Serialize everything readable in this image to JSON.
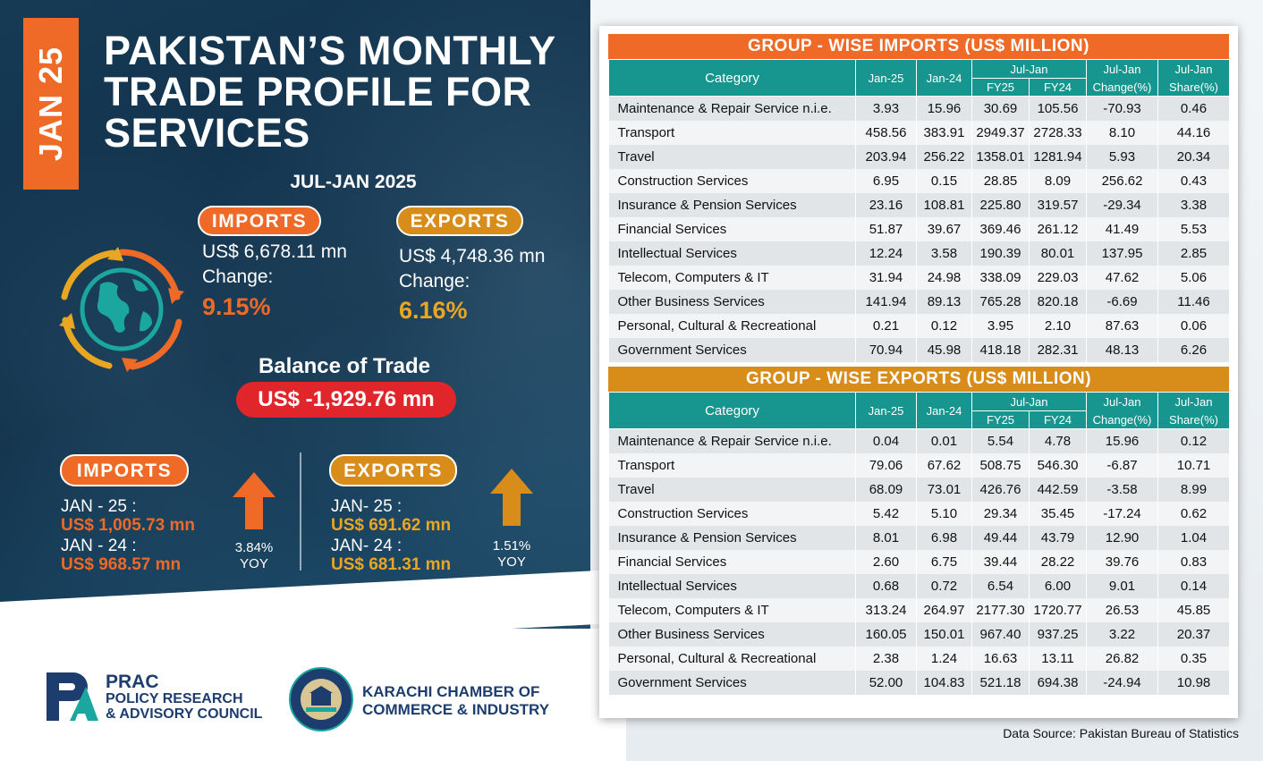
{
  "header": {
    "side_tag": "JAN 25",
    "title_line1": "PAKISTAN’S MONTHLY",
    "title_line2": "TRADE PROFILE FOR",
    "title_line3": "SERVICES",
    "period": "JUL-JAN 2025"
  },
  "summary": {
    "imports_label": "IMPORTS",
    "imports_value": "US$ 6,678.11 mn",
    "imports_change_label": "Change:",
    "imports_change": "9.15%",
    "exports_label": "EXPORTS",
    "exports_value": "US$  4,748.36 mn",
    "exports_change_label": "Change:",
    "exports_change": "6.16%",
    "balance_label": "Balance of Trade",
    "balance_value": "US$ -1,929.76 mn"
  },
  "monthly": {
    "imports_label": "IMPORTS",
    "imports_jan25_label": "JAN - 25 :",
    "imports_jan25_value": "US$ 1,005.73 mn",
    "imports_jan24_label": "JAN - 24 :",
    "imports_jan24_value": "US$ 968.57 mn",
    "imports_yoy_pct": "3.84%",
    "imports_yoy_label": "YOY",
    "exports_label": "EXPORTS",
    "exports_jan25_label": "JAN- 25 :",
    "exports_jan25_value": "US$ 691.62 mn",
    "exports_jan24_label": "JAN- 24 :",
    "exports_jan24_value": "US$ 681.31 mn",
    "exports_yoy_pct": "1.51%",
    "exports_yoy_label": "YOY"
  },
  "logos": {
    "prac_short": "PRAC",
    "prac_line1": "POLICY RESEARCH",
    "prac_line2": "& ADVISORY COUNCIL",
    "kcci_line1": "KARACHI CHAMBER OF",
    "kcci_line2": "COMMERCE & INDUSTRY",
    "kcci_seal_text": "KARACHI CHAMBER OF COMMERCE & INDUSTRY"
  },
  "colors": {
    "orange": "#ee6a26",
    "gold": "#d88d1b",
    "teal": "#17958f",
    "red": "#e0262b",
    "navy": "#163a55"
  },
  "chart_data": [
    {
      "type": "table",
      "title": "GROUP - WISE IMPORTS (US$ MILLION)",
      "columns": [
        "Category",
        "Jan-25",
        "Jan-24",
        "Jul-Jan FY25",
        "Jul-Jan FY24",
        "Jul-Jan Change(%)",
        "Jul-Jan Share(%)"
      ],
      "header": {
        "category": "Category",
        "jan25": "Jan-25",
        "jan24": "Jan-24",
        "juljan": "Jul-Jan",
        "fy25": "FY25",
        "fy24": "FY24",
        "change_top": "Jul-Jan",
        "change_bottom": "Change(%)",
        "share_top": "Jul-Jan",
        "share_bottom": "Share(%)"
      },
      "rows": [
        [
          "Maintenance & Repair Service n.i.e.",
          "3.93",
          "15.96",
          "30.69",
          "105.56",
          "-70.93",
          "0.46"
        ],
        [
          "Transport",
          "458.56",
          "383.91",
          "2949.37",
          "2728.33",
          "8.10",
          "44.16"
        ],
        [
          "Travel",
          "203.94",
          "256.22",
          "1358.01",
          "1281.94",
          "5.93",
          "20.34"
        ],
        [
          "Construction Services",
          "6.95",
          "0.15",
          "28.85",
          "8.09",
          "256.62",
          "0.43"
        ],
        [
          "Insurance & Pension Services",
          "23.16",
          "108.81",
          "225.80",
          "319.57",
          "-29.34",
          "3.38"
        ],
        [
          "Financial Services",
          "51.87",
          "39.67",
          "369.46",
          "261.12",
          "41.49",
          "5.53"
        ],
        [
          "Intellectual Services",
          "12.24",
          "3.58",
          "190.39",
          "80.01",
          "137.95",
          "2.85"
        ],
        [
          "Telecom, Computers & IT",
          "31.94",
          "24.98",
          "338.09",
          "229.03",
          "47.62",
          "5.06"
        ],
        [
          "Other Business Services",
          "141.94",
          "89.13",
          "765.28",
          "820.18",
          "-6.69",
          "11.46"
        ],
        [
          "Personal, Cultural & Recreational",
          "0.21",
          "0.12",
          "3.95",
          "2.10",
          "87.63",
          "0.06"
        ],
        [
          "Government Services",
          "70.94",
          "45.98",
          "418.18",
          "282.31",
          "48.13",
          "6.26"
        ]
      ]
    },
    {
      "type": "table",
      "title": "GROUP - WISE EXPORTS (US$ MILLION)",
      "columns": [
        "Category",
        "Jan-25",
        "Jan-24",
        "Jul-Jan FY25",
        "Jul-Jan FY24",
        "Jul-Jan Change(%)",
        "Jul-Jan Share(%)"
      ],
      "header": {
        "category": "Category",
        "jan25": "Jan-25",
        "jan24": "Jan-24",
        "juljan": "Jul-Jan",
        "fy25": "FY25",
        "fy24": "FY24",
        "change_top": "Jul-Jan",
        "change_bottom": "Change(%)",
        "share_top": "Jul-Jan",
        "share_bottom": "Share(%)"
      },
      "rows": [
        [
          "Maintenance & Repair Service n.i.e.",
          "0.04",
          "0.01",
          "5.54",
          "4.78",
          "15.96",
          "0.12"
        ],
        [
          "Transport",
          "79.06",
          "67.62",
          "508.75",
          "546.30",
          "-6.87",
          "10.71"
        ],
        [
          "Travel",
          "68.09",
          "73.01",
          "426.76",
          "442.59",
          "-3.58",
          "8.99"
        ],
        [
          "Construction Services",
          "5.42",
          "5.10",
          "29.34",
          "35.45",
          "-17.24",
          "0.62"
        ],
        [
          "Insurance & Pension Services",
          "8.01",
          "6.98",
          "49.44",
          "43.79",
          "12.90",
          "1.04"
        ],
        [
          "Financial Services",
          "2.60",
          "6.75",
          "39.44",
          "28.22",
          "39.76",
          "0.83"
        ],
        [
          "Intellectual Services",
          "0.68",
          "0.72",
          "6.54",
          "6.00",
          "9.01",
          "0.14"
        ],
        [
          "Telecom, Computers & IT",
          "313.24",
          "264.97",
          "2177.30",
          "1720.77",
          "26.53",
          "45.85"
        ],
        [
          "Other Business Services",
          "160.05",
          "150.01",
          "967.40",
          "937.25",
          "3.22",
          "20.37"
        ],
        [
          "Personal, Cultural & Recreational",
          "2.38",
          "1.24",
          "16.63",
          "13.11",
          "26.82",
          "0.35"
        ],
        [
          "Government Services",
          "52.00",
          "104.83",
          "521.18",
          "694.38",
          "-24.94",
          "10.98"
        ]
      ]
    }
  ],
  "source": "Data Source: Pakistan Bureau of Statistics"
}
